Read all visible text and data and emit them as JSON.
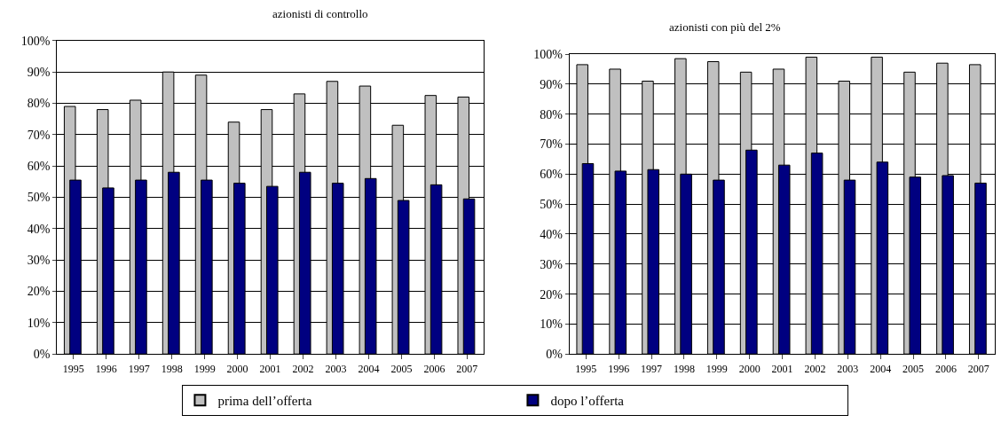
{
  "chart_data": [
    {
      "type": "bar",
      "title": "azionisti di controllo",
      "categories": [
        "1995",
        "1996",
        "1997",
        "1998",
        "1999",
        "2000",
        "2001",
        "2002",
        "2003",
        "2004",
        "2005",
        "2006",
        "2007"
      ],
      "series": [
        {
          "name": "prima dell’offerta",
          "color": "#c0c0c0",
          "values": [
            79,
            78,
            81,
            90,
            89,
            74,
            78,
            83,
            87,
            85.5,
            73,
            82.5,
            82
          ]
        },
        {
          "name": "dopo l’offerta",
          "color": "#000080",
          "values": [
            55.5,
            53,
            55.5,
            58,
            55.5,
            54.5,
            53.5,
            58,
            54.5,
            56,
            49,
            54,
            49.5
          ]
        }
      ],
      "ylim": [
        0,
        100
      ],
      "yticks": [
        {
          "value": 0,
          "label": "0%"
        },
        {
          "value": 10,
          "label": "10%"
        },
        {
          "value": 20,
          "label": "20%"
        },
        {
          "value": 30,
          "label": "30%"
        },
        {
          "value": 40,
          "label": "40%"
        },
        {
          "value": 50,
          "label": "50%"
        },
        {
          "value": 60,
          "label": "60%"
        },
        {
          "value": 70,
          "label": "70%"
        },
        {
          "value": 80,
          "label": "80%"
        },
        {
          "value": 90,
          "label": "90%"
        },
        {
          "value": 100,
          "label": "100%"
        }
      ],
      "grid": "y",
      "legend": "bottom"
    },
    {
      "type": "bar",
      "title": "azionisti con più del 2%",
      "categories": [
        "1995",
        "1996",
        "1997",
        "1998",
        "1999",
        "2000",
        "2001",
        "2002",
        "2003",
        "2004",
        "2005",
        "2006",
        "2007"
      ],
      "series": [
        {
          "name": "prima dell’offerta",
          "color": "#c0c0c0",
          "values": [
            96.5,
            95,
            91,
            98.5,
            97.5,
            94,
            95,
            99,
            91,
            99,
            94,
            97,
            96.5
          ]
        },
        {
          "name": "dopo l’offerta",
          "color": "#000080",
          "values": [
            63.5,
            61,
            61.5,
            60,
            58,
            68,
            63,
            67,
            58,
            64,
            59,
            59.5,
            57
          ]
        }
      ],
      "ylim": [
        0,
        100
      ],
      "yticks": [
        {
          "value": 0,
          "label": "0%"
        },
        {
          "value": 10,
          "label": "10%"
        },
        {
          "value": 20,
          "label": "20%"
        },
        {
          "value": 30,
          "label": "30%"
        },
        {
          "value": 40,
          "label": "40%"
        },
        {
          "value": 50,
          "label": "50%"
        },
        {
          "value": 60,
          "label": "60%"
        },
        {
          "value": 70,
          "label": "70%"
        },
        {
          "value": 80,
          "label": "80%"
        },
        {
          "value": 90,
          "label": "90%"
        },
        {
          "value": 100,
          "label": "100%"
        }
      ],
      "grid": "y",
      "legend": "bottom"
    }
  ]
}
